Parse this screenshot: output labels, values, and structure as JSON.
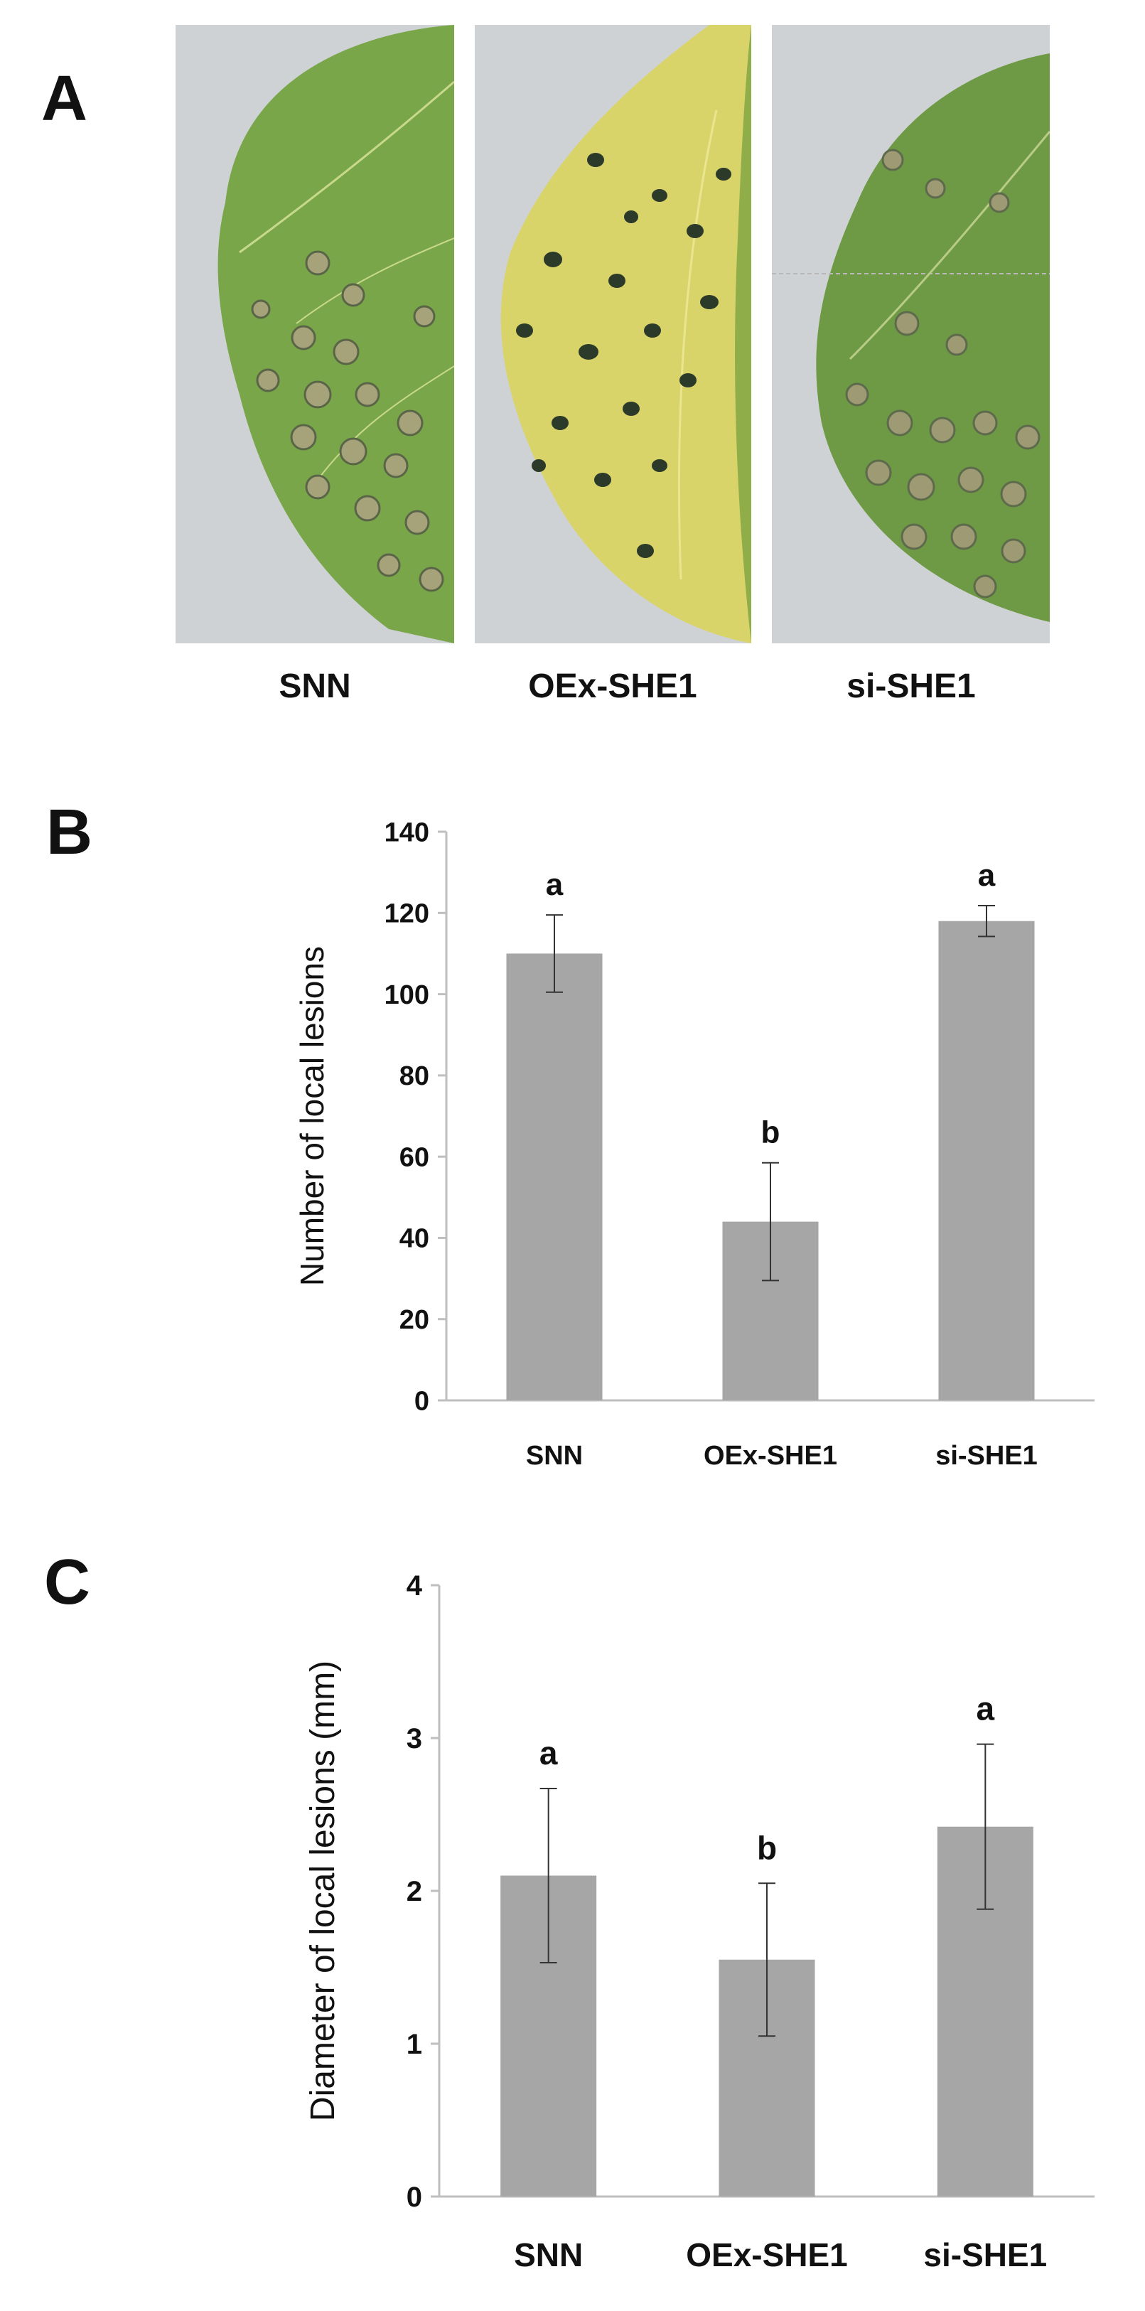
{
  "panels": {
    "a": {
      "letter": "A"
    },
    "b": {
      "letter": "B"
    },
    "c": {
      "letter": "C"
    }
  },
  "photos": {
    "captions": [
      "SNN",
      "OEx-SHE1",
      "si-SHE1"
    ],
    "leaf_colors": {
      "snn": "#7aa64a",
      "oex": "#d9d46a",
      "si": "#6f9a45",
      "lesion_light": "#a6a37a",
      "lesion_dark": "#2c3a2a",
      "background": "#cfd2d5"
    }
  },
  "colors": {
    "bar": "#a6a6a6",
    "axis": "#bfbfbf",
    "text": "#111111"
  },
  "chart_data": [
    {
      "type": "bar",
      "panel": "B",
      "title": "",
      "xlabel": "",
      "ylabel": "Number of local lesions",
      "categories": [
        "SNN",
        "OEx-SHE1",
        "si-SHE1"
      ],
      "values": [
        110,
        44,
        118
      ],
      "errors": [
        9.5,
        14.5,
        3.8
      ],
      "significance": [
        "a",
        "b",
        "a"
      ],
      "ylim": [
        0,
        140
      ],
      "yticks": [
        0,
        20,
        40,
        60,
        80,
        100,
        120,
        140
      ],
      "grid": false
    },
    {
      "type": "bar",
      "panel": "C",
      "title": "",
      "xlabel": "",
      "ylabel": "Diameter of local lesions (mm)",
      "categories": [
        "SNN",
        "OEx-SHE1",
        "si-SHE1"
      ],
      "values": [
        2.1,
        1.55,
        2.42
      ],
      "errors": [
        0.57,
        0.5,
        0.54
      ],
      "significance": [
        "a",
        "b",
        "a"
      ],
      "ylim": [
        0,
        4
      ],
      "yticks": [
        0,
        1,
        2,
        3,
        4
      ],
      "grid": false
    }
  ]
}
